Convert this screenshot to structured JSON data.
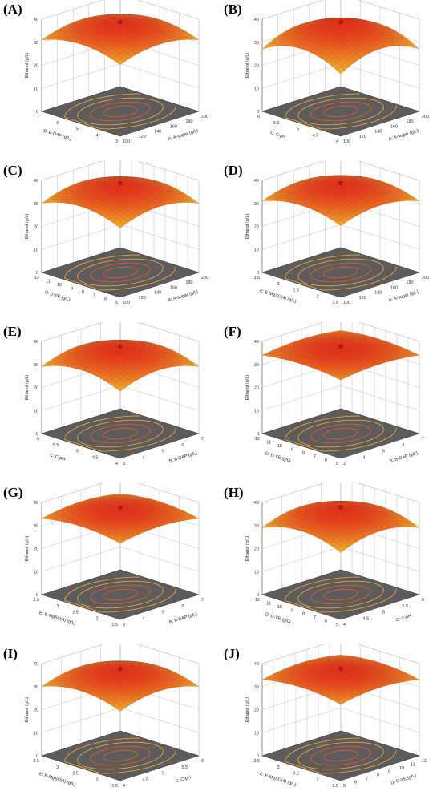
{
  "chart_data": [
    {
      "id": "A",
      "type": "surface3d",
      "zlabel": "Ethanol (g/L)",
      "zticks": [
        "0",
        "10",
        "20",
        "30",
        "40"
      ],
      "xlabel": "A: A-sugar (g/L)",
      "xticks": [
        "100",
        "120",
        "140",
        "160",
        "180",
        "200"
      ],
      "ylabel": "B: B-DAP (g/L)",
      "yticks": [
        "3",
        "4",
        "5",
        "6",
        "7"
      ],
      "z_center": 38,
      "z_edge": 31,
      "z_low_corner": "near"
    },
    {
      "id": "B",
      "type": "surface3d",
      "zlabel": "Ethanol (g/L)",
      "zticks": [
        "0",
        "10",
        "20",
        "30",
        "40"
      ],
      "xlabel": "A: A-sugar (g/L)",
      "xticks": [
        "100",
        "120",
        "140",
        "160",
        "180",
        "200"
      ],
      "ylabel": "C: C-pH",
      "yticks": [
        "4",
        "4.5",
        "5",
        "5.5",
        "6"
      ],
      "z_center": 38,
      "z_edge": 27,
      "z_low_corner": "near"
    },
    {
      "id": "C",
      "type": "surface3d",
      "zlabel": "Ethanol (g/L)",
      "zticks": [
        "0",
        "10",
        "20",
        "30",
        "40"
      ],
      "xlabel": "A: A-sugar (g/L)",
      "xticks": [
        "100",
        "120",
        "140",
        "160",
        "180",
        "200"
      ],
      "ylabel": "D: D-YE (g/L)",
      "yticks": [
        "5",
        "6",
        "7",
        "8",
        "9",
        "10",
        "11",
        "12"
      ],
      "z_center": 38,
      "z_edge": 30,
      "z_low_corner": "near"
    },
    {
      "id": "D",
      "type": "surface3d",
      "zlabel": "Ethanol (g/L)",
      "zticks": [
        "0",
        "10",
        "20",
        "30",
        "40"
      ],
      "xlabel": "A: A-sugar (g/L)",
      "xticks": [
        "100",
        "120",
        "140",
        "160",
        "180",
        "200"
      ],
      "ylabel": "E: E-MgSO(4) (g/L)",
      "yticks": [
        "1.5",
        "2",
        "2.5",
        "3",
        "3.5"
      ],
      "z_center": 38,
      "z_edge": 31,
      "z_low_corner": "near"
    },
    {
      "id": "E",
      "type": "surface3d",
      "zlabel": "Ethanol (g/L)",
      "zticks": [
        "0",
        "10",
        "20",
        "30",
        "40"
      ],
      "xlabel": "B: B-DAP (g/L)",
      "xticks": [
        "3",
        "4",
        "5",
        "6",
        "7"
      ],
      "ylabel": "C: C-pH",
      "yticks": [
        "4",
        "4.5",
        "5",
        "5.5",
        "6"
      ],
      "z_center": 37,
      "z_edge": 29,
      "z_low_corner": "near"
    },
    {
      "id": "F",
      "type": "surface3d",
      "zlabel": "Ethanol (g/L)",
      "zticks": [
        "0",
        "10",
        "20",
        "30",
        "40"
      ],
      "xlabel": "B: B-DAP (g/L)",
      "xticks": [
        "3",
        "4",
        "5",
        "6",
        "7"
      ],
      "ylabel": "D: D-YE (g/L)",
      "yticks": [
        "5",
        "6",
        "7",
        "8",
        "9",
        "10",
        "11",
        "12"
      ],
      "z_center": 37,
      "z_edge": 34,
      "z_low_corner": "near"
    },
    {
      "id": "G",
      "type": "surface3d",
      "zlabel": "Ethanol (g/L)",
      "zticks": [
        "0",
        "10",
        "20",
        "30",
        "40"
      ],
      "xlabel": "B: B-DAP (g/L)",
      "xticks": [
        "3",
        "4",
        "5",
        "6",
        "7"
      ],
      "ylabel": "E: E-MgSO(4) (g/L)",
      "yticks": [
        "1.5",
        "2",
        "2.5",
        "3",
        "3.5"
      ],
      "z_center": 37,
      "z_edge": 33,
      "z_low_corner": "near"
    },
    {
      "id": "H",
      "type": "surface3d",
      "zlabel": "Ethanol (g/L)",
      "zticks": [
        "0",
        "10",
        "20",
        "30",
        "40"
      ],
      "xlabel": "C: C-pH",
      "xticks": [
        "4",
        "4.5",
        "5",
        "5.5",
        "6"
      ],
      "ylabel": "D: D-YE (g/L)",
      "yticks": [
        "5",
        "6",
        "7",
        "8",
        "9",
        "10",
        "11",
        "12"
      ],
      "z_center": 37,
      "z_edge": 29,
      "z_low_corner": "near"
    },
    {
      "id": "I",
      "type": "surface3d",
      "zlabel": "Ethanol (g/L)",
      "zticks": [
        "0",
        "10",
        "20",
        "30",
        "40"
      ],
      "xlabel": "C: C-pH",
      "xticks": [
        "4",
        "4.5",
        "5",
        "5.5",
        "6"
      ],
      "ylabel": "E: E-MgSO(4) (g/L)",
      "yticks": [
        "1.5",
        "2",
        "2.5",
        "3",
        "3.5"
      ],
      "z_center": 37,
      "z_edge": 30,
      "z_low_corner": "near"
    },
    {
      "id": "J",
      "type": "surface3d",
      "zlabel": "Ethanol (g/L)",
      "zticks": [
        "0",
        "10",
        "20",
        "30",
        "40"
      ],
      "xlabel": "D: D-YE (g/L)",
      "xticks": [
        "5",
        "6",
        "7",
        "8",
        "9",
        "10",
        "11",
        "12"
      ],
      "ylabel": "E: E-MgSO(4) (g/L)",
      "yticks": [
        "1.5",
        "2",
        "2.5",
        "3",
        "3.5"
      ],
      "z_center": 37,
      "z_edge": 33,
      "z_low_corner": "near"
    }
  ],
  "labels": [
    "(A)",
    "(B)",
    "(C)",
    "(D)",
    "(E)",
    "(F)",
    "(G)",
    "(H)",
    "(I)",
    "(J)"
  ],
  "colors": {
    "floor": "#5c5c5c",
    "contour": "#e8a23a",
    "contour_inner": "#e05a2a",
    "high": "#e82a14",
    "low": "#f2d22c",
    "point": "#c01818",
    "grid": "#bdbdbd"
  }
}
